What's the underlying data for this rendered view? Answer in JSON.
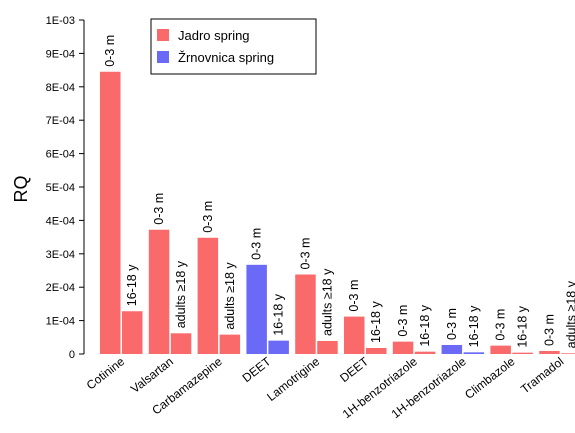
{
  "chart_data": {
    "type": "bar",
    "ylabel": "RQ",
    "ylim": [
      0,
      0.001
    ],
    "yticks": [
      "0",
      "1E-04",
      "2E-04",
      "3E-04",
      "4E-04",
      "5E-04",
      "6E-04",
      "7E-04",
      "8E-04",
      "9E-04",
      "1E-03"
    ],
    "legend": {
      "position": "top-center"
    },
    "series": [
      {
        "name": "Jadro spring",
        "color": "#fb6a6a"
      },
      {
        "name": "Žrnovnica spring",
        "color": "#6a6af7"
      }
    ],
    "groups": [
      {
        "category": "Cotinine",
        "bars": [
          {
            "label": "0-3 m",
            "value": 0.000845,
            "series": 0
          },
          {
            "label": "16-18 y",
            "value": 0.000128,
            "series": 0
          }
        ]
      },
      {
        "category": "Valsartan",
        "bars": [
          {
            "label": "0-3 m",
            "value": 0.000372,
            "series": 0
          },
          {
            "label": "adults ≥18 y",
            "value": 6.2e-05,
            "series": 0
          }
        ]
      },
      {
        "category": "Carbamazepine",
        "bars": [
          {
            "label": "0-3 m",
            "value": 0.000348,
            "series": 0
          },
          {
            "label": "adults ≥18 y",
            "value": 5.8e-05,
            "series": 0
          }
        ]
      },
      {
        "category": "DEET",
        "bars": [
          {
            "label": "0-3 m",
            "value": 0.000267,
            "series": 1
          },
          {
            "label": "16-18 y",
            "value": 4e-05,
            "series": 1
          }
        ]
      },
      {
        "category": "Lamotrigine",
        "bars": [
          {
            "label": "0-3 m",
            "value": 0.000238,
            "series": 0
          },
          {
            "label": "adults ≥18 y",
            "value": 3.9e-05,
            "series": 0
          }
        ]
      },
      {
        "category": "DEET",
        "bars": [
          {
            "label": "0-3 m",
            "value": 0.000112,
            "series": 0
          },
          {
            "label": "16-18 y",
            "value": 1.8e-05,
            "series": 0
          }
        ]
      },
      {
        "category": "1H-benzotriazole",
        "bars": [
          {
            "label": "0-3 m",
            "value": 3.7e-05,
            "series": 0
          },
          {
            "label": "16-18 y",
            "value": 7e-06,
            "series": 0
          }
        ]
      },
      {
        "category": "1H-benzotriazole",
        "bars": [
          {
            "label": "0-3 m",
            "value": 2.7e-05,
            "series": 1
          },
          {
            "label": "16-18 y",
            "value": 5e-06,
            "series": 1
          }
        ]
      },
      {
        "category": "Climbazole",
        "bars": [
          {
            "label": "0-3 m",
            "value": 2.5e-05,
            "series": 0
          },
          {
            "label": "16-18 y",
            "value": 4e-06,
            "series": 0
          }
        ]
      },
      {
        "category": "Tramadol",
        "bars": [
          {
            "label": "0-3 m",
            "value": 9e-06,
            "series": 0
          },
          {
            "label": "adults ≥18 y",
            "value": 2e-06,
            "series": 0
          }
        ]
      }
    ]
  }
}
